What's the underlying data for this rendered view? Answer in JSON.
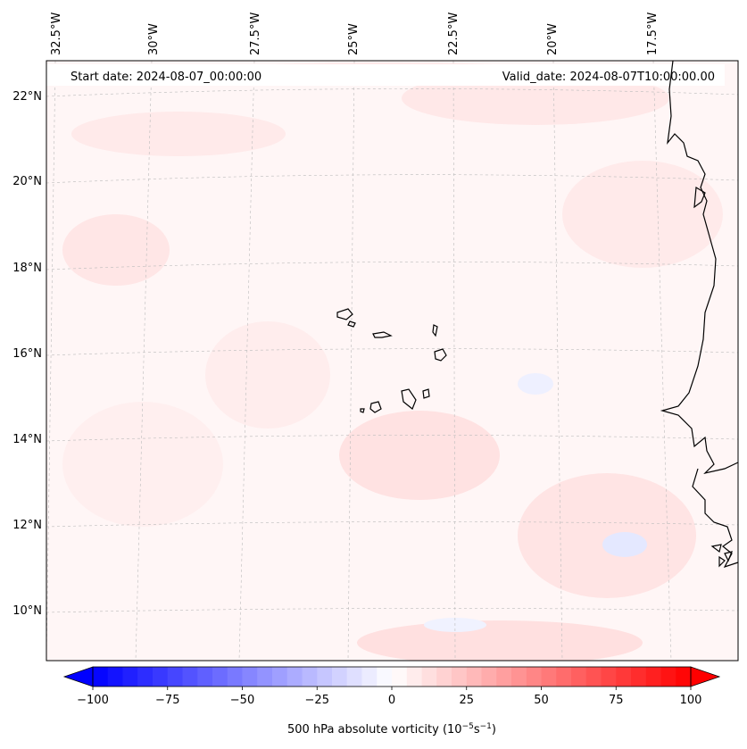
{
  "header": {
    "start_date": "Start date: 2024-08-07_00:00:00",
    "valid_date": "Valid_date: 2024-08-07T10:00:00.00"
  },
  "longitude_labels": [
    "32.5°W",
    "30°W",
    "27.5°W",
    "25°W",
    "22.5°W",
    "20°W",
    "17.5°W"
  ],
  "latitude_labels": [
    "22°N",
    "20°N",
    "18°N",
    "16°N",
    "14°N",
    "12°N",
    "10°N"
  ],
  "colorbar": {
    "ticks": [
      "−100",
      "−75",
      "−50",
      "−25",
      "0",
      "25",
      "50",
      "75",
      "100"
    ],
    "label": "500 hPa absolute vorticity (10",
    "label_exp1": "−5",
    "label_mid": "s",
    "label_exp2": "−1",
    "label_end": ")",
    "min": -100,
    "max": 100,
    "levels": 41,
    "colormap": "bwr",
    "low_color": "#0000ff",
    "mid_color": "#ffffff",
    "high_color": "#ff0000"
  },
  "colors": {
    "land_outline": "#000000",
    "grid": "#bbbbbb",
    "background_field": "#fff4f4"
  }
}
